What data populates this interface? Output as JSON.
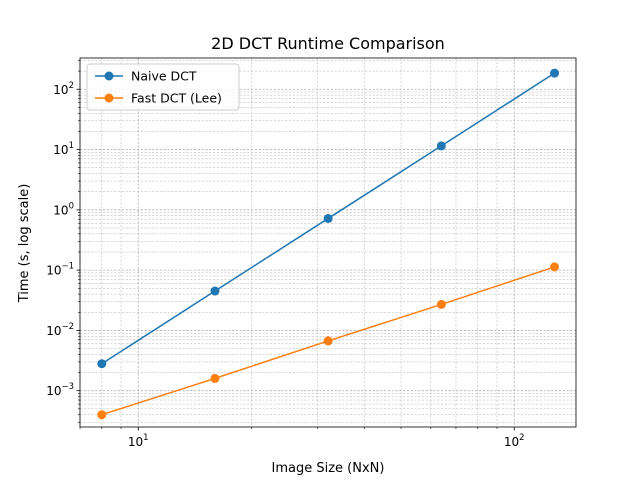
{
  "chart_data": {
    "type": "line",
    "title": "2D DCT Runtime Comparison",
    "xlabel": "Image Size (NxN)",
    "ylabel": "Time (s, log scale)",
    "xscale": "log",
    "yscale": "log",
    "xlim": [
      7.0,
      146.0
    ],
    "ylim": [
      0.00025,
      330
    ],
    "grid": true,
    "legend_position": "top-left",
    "x": [
      8,
      16,
      32,
      64,
      128
    ],
    "x_ticks": [
      {
        "value": 10,
        "base": "10",
        "exp": "1"
      },
      {
        "value": 100,
        "base": "10",
        "exp": "2"
      }
    ],
    "y_ticks": [
      {
        "value": 0.001,
        "base": "10",
        "exp": "−3"
      },
      {
        "value": 0.01,
        "base": "10",
        "exp": "−2"
      },
      {
        "value": 0.1,
        "base": "10",
        "exp": "−1"
      },
      {
        "value": 1,
        "base": "10",
        "exp": "0"
      },
      {
        "value": 10,
        "base": "10",
        "exp": "1"
      },
      {
        "value": 100,
        "base": "10",
        "exp": "2"
      }
    ],
    "series": [
      {
        "name": "Naive DCT",
        "color": "#1f77b4",
        "values": [
          0.0028,
          0.045,
          0.72,
          11.5,
          185
        ]
      },
      {
        "name": "Fast DCT (Lee)",
        "color": "#ff7f0e",
        "values": [
          0.0004,
          0.0016,
          0.0067,
          0.027,
          0.113
        ]
      }
    ]
  }
}
